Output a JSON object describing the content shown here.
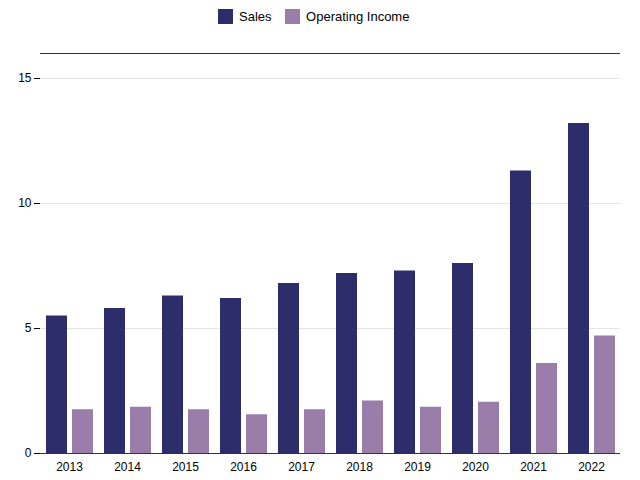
{
  "chart_data": {
    "type": "bar",
    "categories": [
      "2013",
      "2014",
      "2015",
      "2016",
      "2017",
      "2018",
      "2019",
      "2020",
      "2021",
      "2022"
    ],
    "series": [
      {
        "name": "Sales",
        "color": "#2d2d6b",
        "values": [
          5.5,
          5.8,
          6.3,
          6.2,
          6.8,
          7.2,
          7.3,
          7.6,
          11.3,
          13.2
        ]
      },
      {
        "name": "Operating Income",
        "color": "#9b7daa",
        "values": [
          1.75,
          1.85,
          1.75,
          1.55,
          1.75,
          2.1,
          1.85,
          2.05,
          3.6,
          4.7
        ]
      }
    ],
    "ylim": [
      0,
      16
    ],
    "yticks": [
      0,
      5,
      10,
      15
    ],
    "grid": true,
    "legend": "top"
  }
}
